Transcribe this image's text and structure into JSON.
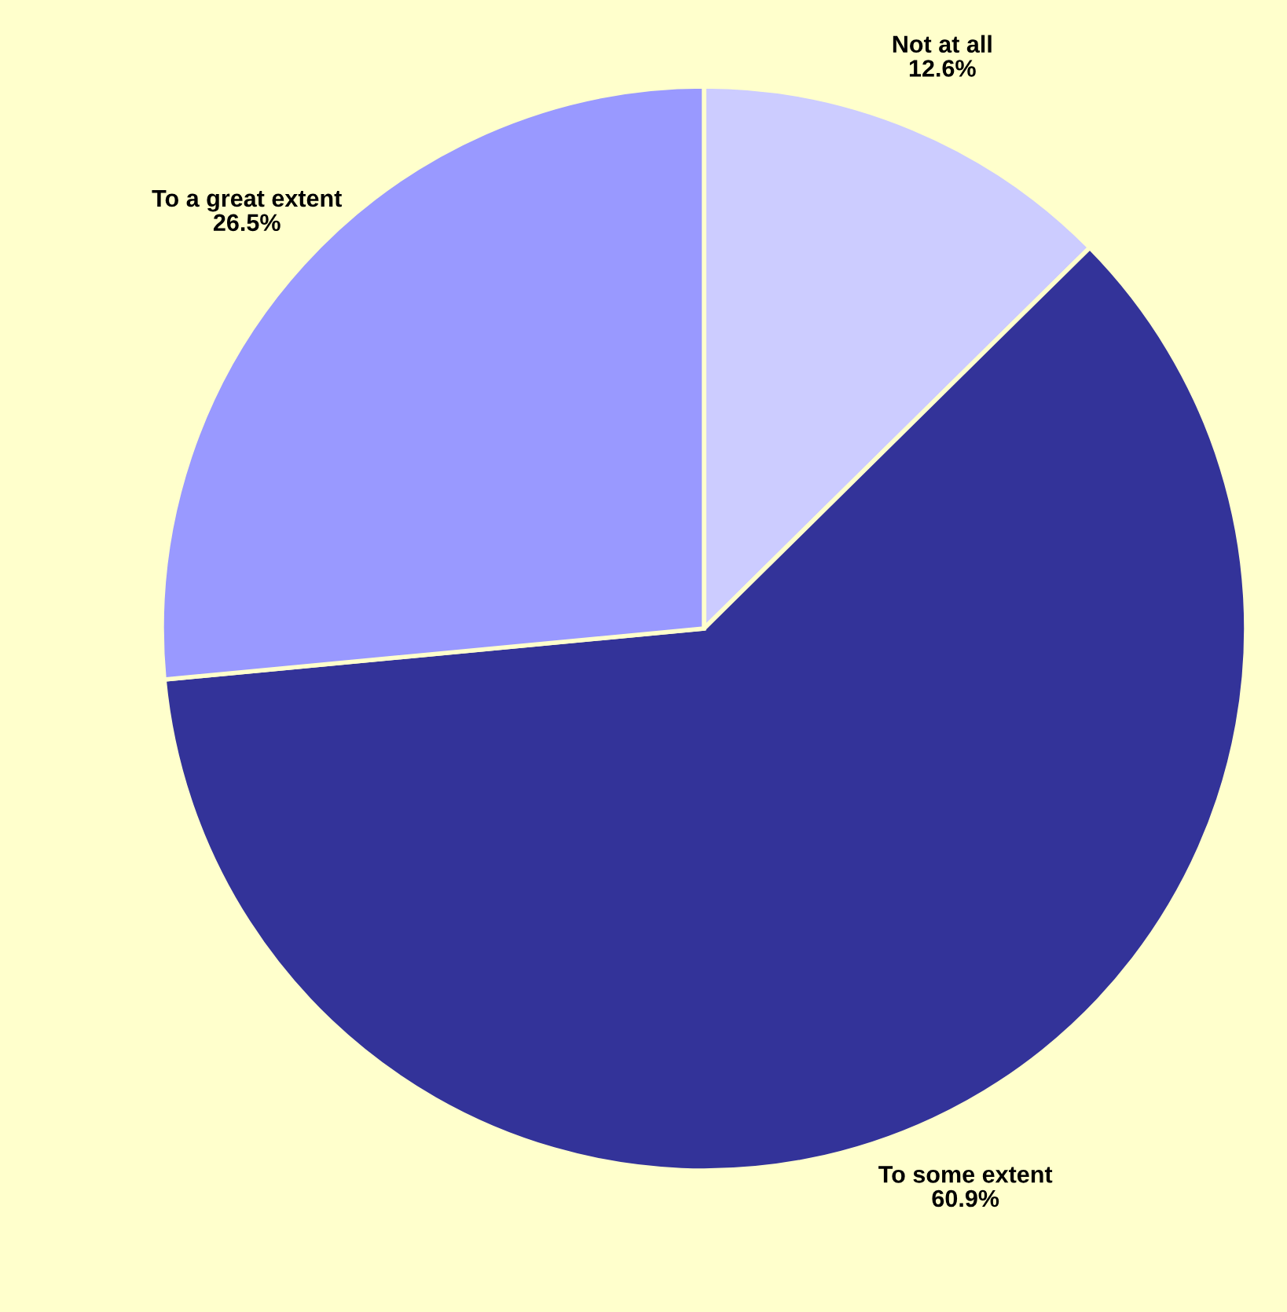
{
  "chart_data": {
    "type": "pie",
    "categories": [
      "Not at all",
      "To some extent",
      "To a great extent"
    ],
    "values": [
      12.6,
      60.9,
      26.5
    ],
    "value_labels": [
      "12.6%",
      "60.9%",
      "26.5%"
    ],
    "colors": [
      "#ccccff",
      "#333399",
      "#9999ff"
    ],
    "legend": false
  }
}
